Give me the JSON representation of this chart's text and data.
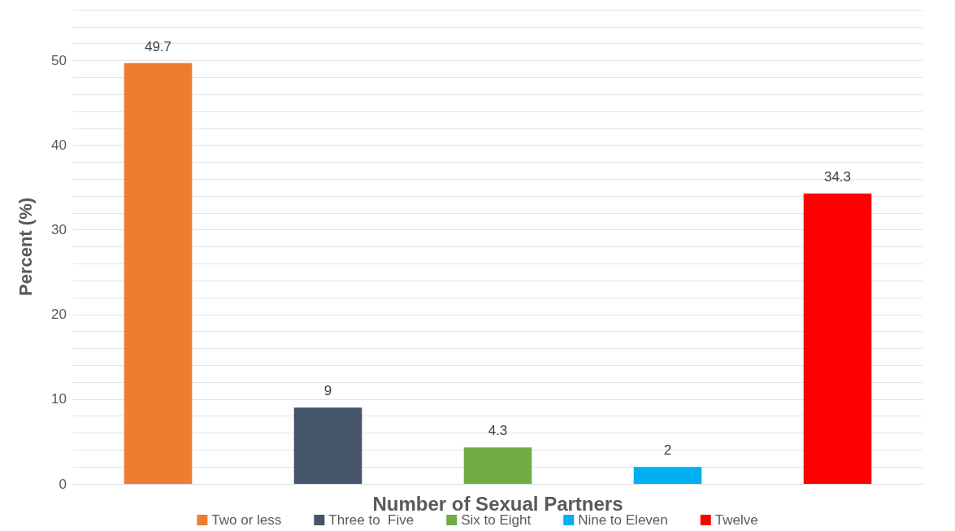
{
  "chart_data": {
    "type": "bar",
    "xlabel": "Number of Sexual Partners",
    "ylabel": "Percent (%)",
    "categories": [
      null,
      null,
      null,
      null,
      null
    ],
    "series": [
      {
        "name": "Two or less",
        "color": "#ed7d31",
        "values": [
          49.7,
          null,
          null,
          null,
          null
        ]
      },
      {
        "name": "Three to  Five",
        "color": "#44546a",
        "values": [
          null,
          9,
          null,
          null,
          null
        ]
      },
      {
        "name": "Six to Eight",
        "color": "#70ad47",
        "values": [
          null,
          null,
          4.3,
          null,
          null
        ]
      },
      {
        "name": "Nine to Eleven",
        "color": "#00b0f0",
        "values": [
          null,
          null,
          null,
          2,
          null
        ]
      },
      {
        "name": "Twelve",
        "color": "#ff0000",
        "values": [
          null,
          null,
          null,
          null,
          34.3
        ]
      }
    ],
    "ylim": [
      0,
      56
    ],
    "yticks": [
      0,
      {
        "value": 2,
        "label": null
      },
      {
        "value": 4,
        "label": null
      },
      {
        "value": 6,
        "label": null
      },
      {
        "value": 8,
        "label": null
      },
      10,
      {
        "value": 12,
        "label": null
      },
      {
        "value": 14,
        "label": null
      },
      {
        "value": 16,
        "label": null
      },
      {
        "value": 18,
        "label": null
      },
      20,
      {
        "value": 22,
        "label": null
      },
      {
        "value": 24,
        "label": null
      },
      {
        "value": 26,
        "label": null
      },
      {
        "value": 28,
        "label": null
      },
      30,
      {
        "value": 32,
        "label": null
      },
      {
        "value": 34,
        "label": null
      },
      {
        "value": 36,
        "label": null
      },
      {
        "value": 38,
        "label": null
      },
      40,
      {
        "value": 42,
        "label": null
      },
      {
        "value": 44,
        "label": null
      },
      {
        "value": 46,
        "label": null
      },
      {
        "value": 48,
        "label": null
      },
      50,
      {
        "value": 52,
        "label": null
      },
      {
        "value": 54,
        "label": null
      },
      {
        "value": 56,
        "label": null
      }
    ],
    "grid": "y",
    "legend": "bottom",
    "data_labels": true
  }
}
